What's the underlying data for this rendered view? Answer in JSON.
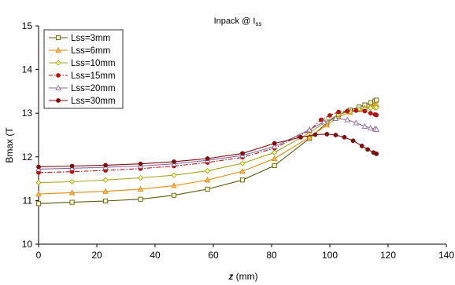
{
  "chart_data": {
    "type": "line",
    "title": "Inpack @ I",
    "title_sub": "ss",
    "xlabel_italic": "z",
    "xlabel_rest": " (mm)",
    "ylabel": "Bmax (T",
    "xlim": [
      0,
      140
    ],
    "ylim": [
      10,
      15
    ],
    "xticks": [
      0,
      20,
      40,
      60,
      80,
      100,
      120,
      140
    ],
    "yticks": [
      10,
      11,
      12,
      13,
      14,
      15
    ],
    "grid": false,
    "legend_position": "top-left",
    "series": [
      {
        "name": "Lss=3mm",
        "color": "#5a5a14",
        "marker": "square",
        "line_style": "solid",
        "x": [
          0,
          11.5,
          23,
          35,
          46.5,
          58,
          70,
          81,
          93,
          99,
          103,
          107,
          110,
          112,
          114,
          115.5,
          116
        ],
        "y": [
          10.93,
          10.96,
          10.99,
          11.03,
          11.12,
          11.26,
          11.47,
          11.8,
          12.42,
          12.78,
          12.97,
          13.07,
          13.14,
          13.19,
          13.24,
          13.28,
          13.3
        ]
      },
      {
        "name": "Lss=6mm",
        "color": "#e08a10",
        "marker": "triangle",
        "line_style": "solid",
        "x": [
          0,
          11.5,
          23,
          35,
          46.5,
          58,
          70,
          81,
          93,
          99,
          103,
          107,
          110,
          112,
          114,
          115.5,
          116
        ],
        "y": [
          11.15,
          11.18,
          11.21,
          11.26,
          11.34,
          11.47,
          11.67,
          11.96,
          12.45,
          12.73,
          12.92,
          13.02,
          13.08,
          13.12,
          13.16,
          13.19,
          13.2
        ]
      },
      {
        "name": "Lss=10mm",
        "color": "#a6a428",
        "marker": "diamond",
        "line_style": "solid",
        "x": [
          0,
          11.5,
          23,
          35,
          46.5,
          58,
          70,
          81,
          93,
          99,
          103,
          107,
          110,
          112,
          114,
          115.5,
          116
        ],
        "y": [
          11.41,
          11.43,
          11.47,
          11.52,
          11.58,
          11.68,
          11.85,
          12.1,
          12.55,
          12.82,
          12.97,
          13.04,
          13.08,
          13.1,
          13.12,
          13.13,
          13.13
        ]
      },
      {
        "name": "Lss=15mm",
        "color": "#b01818",
        "marker": "circle",
        "line_style": "dashdot",
        "x": [
          0,
          11.5,
          23,
          35,
          46.5,
          58,
          70,
          81,
          93,
          97,
          100,
          103,
          106,
          109,
          112,
          114,
          115.5,
          116
        ],
        "y": [
          11.64,
          11.66,
          11.69,
          11.73,
          11.79,
          11.87,
          11.99,
          12.2,
          12.6,
          12.85,
          12.95,
          13.03,
          13.05,
          13.06,
          13.05,
          13.0,
          12.97,
          12.96
        ]
      },
      {
        "name": "Lss=20mm",
        "color": "#8a6a9a",
        "marker": "triangle_open",
        "line_style": "solid",
        "x": [
          0,
          11.5,
          23,
          35,
          46.5,
          58,
          70,
          81,
          93,
          98,
          102,
          106,
          109,
          112,
          114,
          115.5,
          116
        ],
        "y": [
          11.72,
          11.74,
          11.76,
          11.79,
          11.84,
          11.92,
          12.03,
          12.24,
          12.62,
          12.8,
          12.88,
          12.85,
          12.78,
          12.7,
          12.66,
          12.64,
          12.63
        ]
      },
      {
        "name": "Lss=30mm",
        "color": "#7a1010",
        "marker": "circle",
        "line_style": "solid",
        "x": [
          0,
          11.5,
          23,
          35,
          46.5,
          58,
          70,
          81,
          90,
          95,
          99,
          102,
          105,
          108,
          111,
          113,
          115,
          116
        ],
        "y": [
          11.77,
          11.79,
          11.81,
          11.84,
          11.89,
          11.96,
          12.08,
          12.31,
          12.45,
          12.51,
          12.52,
          12.5,
          12.45,
          12.37,
          12.25,
          12.17,
          12.1,
          12.07
        ]
      }
    ]
  }
}
